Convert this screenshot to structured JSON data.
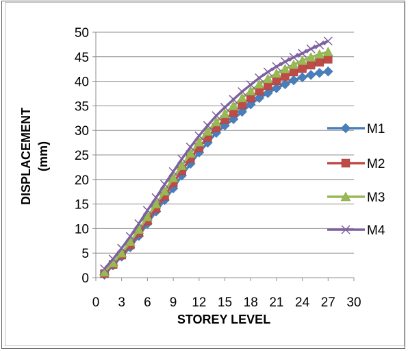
{
  "chart_data": {
    "type": "line",
    "title": "",
    "xlabel": "STOREY LEVEL",
    "ylabel_line1": "DISPLACEMENT",
    "ylabel_line2": "(mm)",
    "xlim": [
      0,
      30
    ],
    "ylim": [
      0,
      50
    ],
    "xticks": [
      0,
      3,
      6,
      9,
      12,
      15,
      18,
      21,
      24,
      27,
      30
    ],
    "yticks": [
      0,
      5,
      10,
      15,
      20,
      25,
      30,
      35,
      40,
      45,
      50
    ],
    "grid": "horizontal",
    "legend_position": "right",
    "x": [
      1,
      2,
      3,
      4,
      5,
      6,
      7,
      8,
      9,
      10,
      11,
      12,
      13,
      14,
      15,
      16,
      17,
      18,
      19,
      20,
      21,
      22,
      23,
      24,
      25,
      26,
      27
    ],
    "series": [
      {
        "name": "M1",
        "color": "#4a7ebb",
        "marker": "diamond",
        "values": [
          0.6,
          2.5,
          4.3,
          6.2,
          8.5,
          11.0,
          13.5,
          15.8,
          18.2,
          20.8,
          23.2,
          25.5,
          27.5,
          29.5,
          31.0,
          32.3,
          33.8,
          35.3,
          36.6,
          37.6,
          38.6,
          39.4,
          40.2,
          40.8,
          41.3,
          41.7,
          42.0
        ]
      },
      {
        "name": "M2",
        "color": "#be4b48",
        "marker": "square",
        "values": [
          0.8,
          2.7,
          4.6,
          6.7,
          9.1,
          11.6,
          14.1,
          16.6,
          19.3,
          21.8,
          24.3,
          26.5,
          28.6,
          30.6,
          32.2,
          33.6,
          35.2,
          36.6,
          38.0,
          39.1,
          40.1,
          41.0,
          41.9,
          42.6,
          43.3,
          43.9,
          44.5
        ]
      },
      {
        "name": "M3",
        "color": "#98b954",
        "marker": "triangle",
        "values": [
          1.1,
          3.0,
          5.0,
          7.3,
          9.8,
          12.4,
          15.0,
          17.6,
          20.3,
          22.8,
          25.3,
          27.6,
          29.8,
          31.7,
          33.4,
          35.0,
          36.6,
          38.0,
          39.4,
          40.5,
          41.6,
          42.5,
          43.4,
          44.2,
          44.9,
          45.5,
          46.0
        ]
      },
      {
        "name": "M4",
        "color": "#7d60a0",
        "marker": "x",
        "values": [
          1.8,
          3.8,
          6.0,
          8.4,
          11.0,
          13.7,
          16.3,
          19.0,
          21.6,
          24.2,
          26.6,
          28.9,
          31.0,
          33.0,
          34.7,
          36.3,
          37.9,
          39.3,
          40.7,
          41.9,
          43.0,
          44.0,
          44.9,
          45.7,
          46.6,
          47.4,
          48.2
        ]
      }
    ]
  }
}
